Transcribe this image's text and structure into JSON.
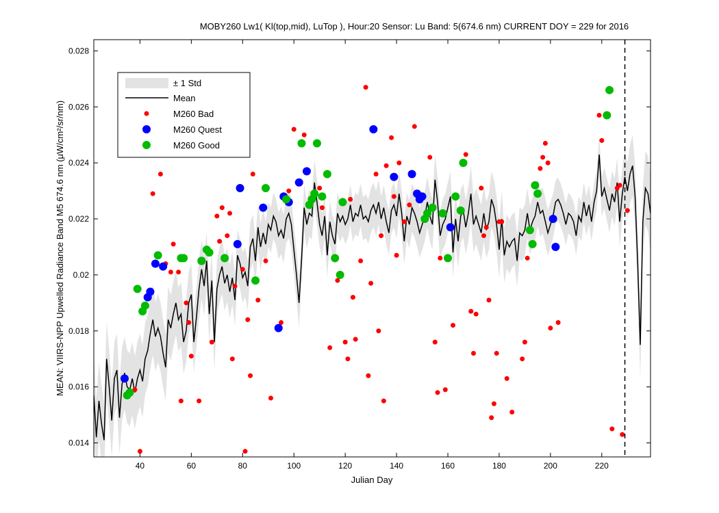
{
  "chart_data": {
    "type": "scatter",
    "title": "MOBY260   Lw1( Kl(top,mid), LuTop ),   Hour:20 Sensor: Lu Band: 5(674.6 nm)   CURRENT DOY = 229 for 2016",
    "xlabel": "Julian Day",
    "ylabel": "MEAN: VIIRS-NPP Upwelled Radiance Band M5 674.6 nm (μW/cm²/sr/nm)",
    "xlim": [
      22,
      239
    ],
    "ylim": [
      0.0135,
      0.0284
    ],
    "x_ticks": [
      40,
      60,
      80,
      100,
      120,
      140,
      160,
      180,
      200,
      220
    ],
    "y_ticks": [
      0.014,
      0.016,
      0.018,
      0.02,
      0.022,
      0.024,
      0.026,
      0.028
    ],
    "y_tick_labels": [
      "0.014",
      "0.016",
      "0.018",
      "0.02",
      "0.022",
      "0.024",
      "0.026",
      "0.028"
    ],
    "current_doy": 229,
    "legend": {
      "position": "top-left",
      "std_label": "± 1 Std",
      "mean_label": "Mean",
      "bad_label": "M260 Bad",
      "quest_label": "M260 Quest",
      "good_label": "M260 Good"
    },
    "colors": {
      "std_band": "#e3e3e3",
      "mean": "#000000",
      "bad": "#ff0000",
      "quest": "#0000ff",
      "good": "#00bb00",
      "current_line": "#000000"
    },
    "mean_series": [
      [
        22,
        0.0157
      ],
      [
        23,
        0.0142
      ],
      [
        24,
        0.0155
      ],
      [
        25,
        0.0147
      ],
      [
        26,
        0.0141
      ],
      [
        27,
        0.017
      ],
      [
        28,
        0.016
      ],
      [
        29,
        0.0148
      ],
      [
        30,
        0.0163
      ],
      [
        31,
        0.0166
      ],
      [
        32,
        0.0149
      ],
      [
        33,
        0.0161
      ],
      [
        34,
        0.0165
      ],
      [
        35,
        0.016
      ],
      [
        36,
        0.0159
      ],
      [
        37,
        0.0163
      ],
      [
        38,
        0.0158
      ],
      [
        39,
        0.0163
      ],
      [
        40,
        0.0166
      ],
      [
        41,
        0.0162
      ],
      [
        42,
        0.017
      ],
      [
        43,
        0.0173
      ],
      [
        44,
        0.0179
      ],
      [
        45,
        0.0184
      ],
      [
        46,
        0.0178
      ],
      [
        47,
        0.0181
      ],
      [
        48,
        0.0178
      ],
      [
        49,
        0.0172
      ],
      [
        50,
        0.0167
      ],
      [
        51,
        0.0184
      ],
      [
        52,
        0.0181
      ],
      [
        53,
        0.0186
      ],
      [
        54,
        0.019
      ],
      [
        55,
        0.0184
      ],
      [
        56,
        0.0186
      ],
      [
        57,
        0.0176
      ],
      [
        58,
        0.018
      ],
      [
        59,
        0.019
      ],
      [
        60,
        0.0193
      ],
      [
        61,
        0.0176
      ],
      [
        62,
        0.0185
      ],
      [
        63,
        0.0195
      ],
      [
        64,
        0.0202
      ],
      [
        65,
        0.0196
      ],
      [
        66,
        0.0205
      ],
      [
        67,
        0.0186
      ],
      [
        68,
        0.0198
      ],
      [
        69,
        0.0176
      ],
      [
        70,
        0.0195
      ],
      [
        71,
        0.02
      ],
      [
        72,
        0.0203
      ],
      [
        73,
        0.0197
      ],
      [
        74,
        0.02
      ],
      [
        75,
        0.0194
      ],
      [
        76,
        0.0199
      ],
      [
        77,
        0.0191
      ],
      [
        78,
        0.0207
      ],
      [
        79,
        0.0204
      ],
      [
        80,
        0.0199
      ],
      [
        81,
        0.0201
      ],
      [
        82,
        0.0196
      ],
      [
        83,
        0.021
      ],
      [
        84,
        0.0213
      ],
      [
        85,
        0.0205
      ],
      [
        86,
        0.0217
      ],
      [
        87,
        0.021
      ],
      [
        88,
        0.0215
      ],
      [
        89,
        0.0211
      ],
      [
        90,
        0.0218
      ],
      [
        91,
        0.0216
      ],
      [
        92,
        0.0221
      ],
      [
        93,
        0.0219
      ],
      [
        94,
        0.0214
      ],
      [
        95,
        0.0216
      ],
      [
        96,
        0.0213
      ],
      [
        97,
        0.022
      ],
      [
        98,
        0.0222
      ],
      [
        99,
        0.0218
      ],
      [
        100,
        0.0209
      ],
      [
        101,
        0.02
      ],
      [
        102,
        0.019
      ],
      [
        103,
        0.0206
      ],
      [
        104,
        0.0224
      ],
      [
        105,
        0.0218
      ],
      [
        106,
        0.0222
      ],
      [
        107,
        0.0221
      ],
      [
        108,
        0.0233
      ],
      [
        109,
        0.0226
      ],
      [
        110,
        0.0218
      ],
      [
        111,
        0.0214
      ],
      [
        112,
        0.0221
      ],
      [
        113,
        0.0207
      ],
      [
        114,
        0.0219
      ],
      [
        115,
        0.0214
      ],
      [
        116,
        0.0211
      ],
      [
        117,
        0.0222
      ],
      [
        118,
        0.0219
      ],
      [
        119,
        0.0221
      ],
      [
        120,
        0.0218
      ],
      [
        121,
        0.022
      ],
      [
        122,
        0.0225
      ],
      [
        123,
        0.0219
      ],
      [
        124,
        0.0222
      ],
      [
        125,
        0.0221
      ],
      [
        126,
        0.0225
      ],
      [
        127,
        0.022
      ],
      [
        128,
        0.0221
      ],
      [
        129,
        0.0219
      ],
      [
        130,
        0.0223
      ],
      [
        131,
        0.0225
      ],
      [
        132,
        0.0222
      ],
      [
        133,
        0.0226
      ],
      [
        134,
        0.022
      ],
      [
        135,
        0.0224
      ],
      [
        136,
        0.0219
      ],
      [
        137,
        0.0215
      ],
      [
        138,
        0.0223
      ],
      [
        139,
        0.0225
      ],
      [
        140,
        0.0221
      ],
      [
        141,
        0.0229
      ],
      [
        142,
        0.0222
      ],
      [
        143,
        0.0212
      ],
      [
        144,
        0.0221
      ],
      [
        145,
        0.0218
      ],
      [
        146,
        0.0224
      ],
      [
        147,
        0.0222
      ],
      [
        148,
        0.0219
      ],
      [
        149,
        0.0215
      ],
      [
        150,
        0.0218
      ],
      [
        151,
        0.0221
      ],
      [
        152,
        0.0226
      ],
      [
        153,
        0.0221
      ],
      [
        154,
        0.0218
      ],
      [
        155,
        0.0234
      ],
      [
        156,
        0.0226
      ],
      [
        157,
        0.0214
      ],
      [
        158,
        0.0218
      ],
      [
        159,
        0.022
      ],
      [
        160,
        0.0224
      ],
      [
        161,
        0.0228
      ],
      [
        162,
        0.0208
      ],
      [
        163,
        0.022
      ],
      [
        164,
        0.0212
      ],
      [
        165,
        0.0221
      ],
      [
        166,
        0.0223
      ],
      [
        167,
        0.0217
      ],
      [
        168,
        0.0222
      ],
      [
        169,
        0.0229
      ],
      [
        170,
        0.0218
      ],
      [
        171,
        0.0221
      ],
      [
        172,
        0.0218
      ],
      [
        173,
        0.0215
      ],
      [
        174,
        0.0222
      ],
      [
        175,
        0.0216
      ],
      [
        176,
        0.0219
      ],
      [
        177,
        0.0227
      ],
      [
        178,
        0.0224
      ],
      [
        179,
        0.0218
      ],
      [
        180,
        0.0209
      ],
      [
        181,
        0.022
      ],
      [
        182,
        0.0207
      ],
      [
        183,
        0.0212
      ],
      [
        184,
        0.021
      ],
      [
        185,
        0.0212
      ],
      [
        186,
        0.0213
      ],
      [
        187,
        0.0205
      ],
      [
        188,
        0.0215
      ],
      [
        189,
        0.0214
      ],
      [
        190,
        0.0216
      ],
      [
        191,
        0.0222
      ],
      [
        192,
        0.0216
      ],
      [
        193,
        0.0219
      ],
      [
        194,
        0.0221
      ],
      [
        195,
        0.0226
      ],
      [
        196,
        0.0222
      ],
      [
        197,
        0.0223
      ],
      [
        198,
        0.0219
      ],
      [
        199,
        0.0215
      ],
      [
        200,
        0.0218
      ],
      [
        201,
        0.0221
      ],
      [
        202,
        0.0226
      ],
      [
        203,
        0.0227
      ],
      [
        204,
        0.0225
      ],
      [
        205,
        0.0222
      ],
      [
        206,
        0.0218
      ],
      [
        207,
        0.0222
      ],
      [
        208,
        0.0221
      ],
      [
        209,
        0.0219
      ],
      [
        210,
        0.0214
      ],
      [
        211,
        0.0221
      ],
      [
        212,
        0.0219
      ],
      [
        213,
        0.0226
      ],
      [
        214,
        0.0221
      ],
      [
        215,
        0.0225
      ],
      [
        216,
        0.0219
      ],
      [
        217,
        0.0226
      ],
      [
        218,
        0.023
      ],
      [
        219,
        0.0243
      ],
      [
        220,
        0.0228
      ],
      [
        221,
        0.0231
      ],
      [
        222,
        0.0227
      ],
      [
        223,
        0.0223
      ],
      [
        224,
        0.0229
      ],
      [
        225,
        0.0226
      ],
      [
        226,
        0.0233
      ],
      [
        227,
        0.0219
      ],
      [
        228,
        0.0229
      ],
      [
        229,
        0.0235
      ],
      [
        230,
        0.023
      ],
      [
        231,
        0.0236
      ],
      [
        232,
        0.0239
      ],
      [
        233,
        0.0228
      ],
      [
        234,
        0.0204
      ],
      [
        235,
        0.0175
      ],
      [
        236,
        0.0219
      ],
      [
        237,
        0.0231
      ],
      [
        238,
        0.0229
      ],
      [
        239,
        0.0222
      ]
    ],
    "std_halfwidth": [
      [
        22,
        0.0014
      ],
      [
        30,
        0.0013
      ],
      [
        40,
        0.0013
      ],
      [
        50,
        0.0012
      ],
      [
        60,
        0.0011
      ],
      [
        70,
        0.001
      ],
      [
        80,
        0.0009
      ],
      [
        90,
        0.0008
      ],
      [
        100,
        0.0009
      ],
      [
        110,
        0.0008
      ],
      [
        120,
        0.0007
      ],
      [
        130,
        0.0008
      ],
      [
        140,
        0.0008
      ],
      [
        150,
        0.0009
      ],
      [
        160,
        0.0009
      ],
      [
        170,
        0.001
      ],
      [
        180,
        0.001
      ],
      [
        190,
        0.0009
      ],
      [
        200,
        0.0008
      ],
      [
        210,
        0.0007
      ],
      [
        220,
        0.0007
      ],
      [
        230,
        0.001
      ],
      [
        239,
        0.0014
      ]
    ],
    "bad_points": [
      [
        38,
        0.0159
      ],
      [
        40,
        0.0137
      ],
      [
        45,
        0.0229
      ],
      [
        48,
        0.0236
      ],
      [
        50,
        0.0204
      ],
      [
        52,
        0.0201
      ],
      [
        53,
        0.0211
      ],
      [
        55,
        0.0201
      ],
      [
        56,
        0.0155
      ],
      [
        58,
        0.019
      ],
      [
        59,
        0.0183
      ],
      [
        60,
        0.0171
      ],
      [
        63,
        0.0155
      ],
      [
        68,
        0.0176
      ],
      [
        70,
        0.0221
      ],
      [
        71,
        0.0212
      ],
      [
        72,
        0.0224
      ],
      [
        74,
        0.0214
      ],
      [
        75,
        0.0222
      ],
      [
        76,
        0.017
      ],
      [
        77,
        0.0196
      ],
      [
        80,
        0.0202
      ],
      [
        81,
        0.0137
      ],
      [
        82,
        0.0184
      ],
      [
        83,
        0.0164
      ],
      [
        84,
        0.0236
      ],
      [
        86,
        0.0191
      ],
      [
        89,
        0.0205
      ],
      [
        91,
        0.0156
      ],
      [
        95,
        0.0183
      ],
      [
        98,
        0.023
      ],
      [
        100,
        0.0252
      ],
      [
        104,
        0.025
      ],
      [
        110,
        0.0231
      ],
      [
        111,
        0.0224
      ],
      [
        114,
        0.0174
      ],
      [
        117,
        0.0198
      ],
      [
        120,
        0.0176
      ],
      [
        121,
        0.017
      ],
      [
        122,
        0.0227
      ],
      [
        123,
        0.0192
      ],
      [
        124,
        0.0177
      ],
      [
        126,
        0.0205
      ],
      [
        128,
        0.0267
      ],
      [
        129,
        0.0164
      ],
      [
        130,
        0.0197
      ],
      [
        132,
        0.0236
      ],
      [
        133,
        0.018
      ],
      [
        134,
        0.0214
      ],
      [
        135,
        0.0155
      ],
      [
        136,
        0.0239
      ],
      [
        138,
        0.0249
      ],
      [
        139,
        0.0228
      ],
      [
        140,
        0.0207
      ],
      [
        141,
        0.024
      ],
      [
        143,
        0.0219
      ],
      [
        145,
        0.0225
      ],
      [
        147,
        0.0253
      ],
      [
        153,
        0.0242
      ],
      [
        155,
        0.0176
      ],
      [
        156,
        0.0158
      ],
      [
        157,
        0.0206
      ],
      [
        159,
        0.0159
      ],
      [
        162,
        0.0182
      ],
      [
        165,
        0.0223
      ],
      [
        167,
        0.0243
      ],
      [
        169,
        0.0187
      ],
      [
        170,
        0.0172
      ],
      [
        171,
        0.0186
      ],
      [
        173,
        0.0231
      ],
      [
        174,
        0.0214
      ],
      [
        175,
        0.0217
      ],
      [
        176,
        0.0191
      ],
      [
        177,
        0.0149
      ],
      [
        178,
        0.0154
      ],
      [
        179,
        0.0172
      ],
      [
        180,
        0.0219
      ],
      [
        181,
        0.0219
      ],
      [
        183,
        0.0163
      ],
      [
        185,
        0.0151
      ],
      [
        189,
        0.017
      ],
      [
        190,
        0.0176
      ],
      [
        191,
        0.0206
      ],
      [
        196,
        0.0238
      ],
      [
        197,
        0.0242
      ],
      [
        198,
        0.0247
      ],
      [
        199,
        0.024
      ],
      [
        200,
        0.0181
      ],
      [
        203,
        0.0183
      ],
      [
        219,
        0.0257
      ],
      [
        220,
        0.0248
      ],
      [
        224,
        0.0145
      ],
      [
        226,
        0.0231
      ],
      [
        227,
        0.0232
      ],
      [
        228,
        0.0143
      ],
      [
        230,
        0.0223
      ]
    ],
    "quest_points": [
      [
        34,
        0.0163
      ],
      [
        43,
        0.0192
      ],
      [
        44,
        0.0194
      ],
      [
        46,
        0.0204
      ],
      [
        49,
        0.0203
      ],
      [
        64,
        0.0205
      ],
      [
        78,
        0.0211
      ],
      [
        79,
        0.0231
      ],
      [
        88,
        0.0224
      ],
      [
        94,
        0.0181
      ],
      [
        96,
        0.0228
      ],
      [
        98,
        0.0226
      ],
      [
        102,
        0.0233
      ],
      [
        105,
        0.0237
      ],
      [
        131,
        0.0252
      ],
      [
        139,
        0.0235
      ],
      [
        146,
        0.0236
      ],
      [
        148,
        0.0229
      ],
      [
        149,
        0.0227
      ],
      [
        150,
        0.0228
      ],
      [
        161,
        0.0217
      ],
      [
        201,
        0.022
      ],
      [
        202,
        0.021
      ]
    ],
    "good_points": [
      [
        35,
        0.0157
      ],
      [
        36,
        0.0158
      ],
      [
        39,
        0.0195
      ],
      [
        41,
        0.0187
      ],
      [
        42,
        0.0189
      ],
      [
        47,
        0.0207
      ],
      [
        56,
        0.0206
      ],
      [
        57,
        0.0206
      ],
      [
        64,
        0.0205
      ],
      [
        66,
        0.0209
      ],
      [
        67,
        0.0208
      ],
      [
        73,
        0.0206
      ],
      [
        85,
        0.0198
      ],
      [
        89,
        0.0231
      ],
      [
        97,
        0.0227
      ],
      [
        103,
        0.0247
      ],
      [
        106,
        0.0225
      ],
      [
        107,
        0.0227
      ],
      [
        108,
        0.0229
      ],
      [
        109,
        0.0247
      ],
      [
        111,
        0.0228
      ],
      [
        113,
        0.0236
      ],
      [
        116,
        0.0206
      ],
      [
        118,
        0.02
      ],
      [
        119,
        0.0226
      ],
      [
        151,
        0.022
      ],
      [
        152,
        0.0222
      ],
      [
        154,
        0.0224
      ],
      [
        158,
        0.0222
      ],
      [
        160,
        0.0206
      ],
      [
        163,
        0.0228
      ],
      [
        165,
        0.0223
      ],
      [
        166,
        0.024
      ],
      [
        192,
        0.0216
      ],
      [
        193,
        0.0211
      ],
      [
        194,
        0.0232
      ],
      [
        195,
        0.0229
      ],
      [
        222,
        0.0257
      ],
      [
        223,
        0.0266
      ]
    ]
  }
}
